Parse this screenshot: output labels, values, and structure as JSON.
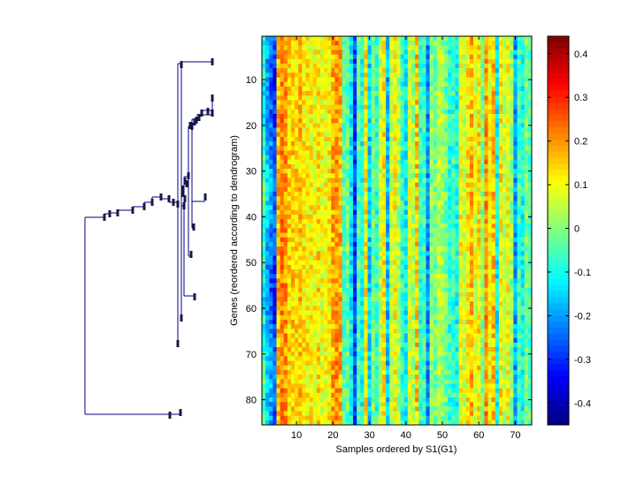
{
  "chart_data": [
    {
      "type": "dendrogram",
      "orientation": "leaves-right",
      "leaf_count": 85,
      "description_visible": "Hierarchical clustering tree of 85 genes; leaves ordered top-to-bottom to match heatmap rows",
      "line_color": "#000080"
    },
    {
      "type": "heatmap",
      "xlabel": "Samples ordered by S1(G1)",
      "ylabel": "Genes (reordered according to dendrogram)",
      "n_rows": 85,
      "n_cols": 74,
      "xlim": [
        0.5,
        74.5
      ],
      "ylim": [
        0.5,
        85.5
      ],
      "x_ticks": [
        10,
        20,
        30,
        40,
        50,
        60,
        70
      ],
      "x_tick_labels": [
        "10",
        "20",
        "30",
        "40",
        "50",
        "60",
        "70"
      ],
      "y_ticks": [
        10,
        20,
        30,
        40,
        50,
        60,
        70,
        80
      ],
      "y_tick_labels": [
        "10",
        "20",
        "30",
        "40",
        "50",
        "60",
        "70",
        "80"
      ],
      "colormap": "jet",
      "column_profile_mean": [
        -0.08,
        -0.18,
        -0.22,
        -0.28,
        0.17,
        0.22,
        0.2,
        0.14,
        0.15,
        0.13,
        0.16,
        0.12,
        0.12,
        0.11,
        0.1,
        0.13,
        0.09,
        0.1,
        0.12,
        0.18,
        0.2,
        0.18,
        -0.05,
        -0.03,
        -0.12,
        -0.28,
        -0.04,
        -0.1,
        0.12,
        -0.15,
        -0.02,
        -0.08,
        0.05,
        0.12,
        -0.18,
        0.06,
        0.1,
        0.03,
        -0.08,
        -0.12,
        0.07,
        0.03,
        0.16,
        -0.08,
        -0.06,
        -0.22,
        0.0,
        -0.02,
        0.05,
        0.02,
        -0.02,
        -0.08,
        -0.07,
        -0.1,
        0.1,
        0.06,
        0.12,
        0.17,
        0.08,
        0.13,
        -0.02,
        0.2,
        0.1,
        0.16,
        -0.12,
        0.12,
        0.05,
        0.1,
        0.02,
        -0.2,
        -0.06,
        -0.1,
        0.0,
        -0.05
      ]
    },
    {
      "type": "colorbar",
      "clim": [
        -0.45,
        0.44
      ],
      "ticks": [
        -0.4,
        -0.3,
        -0.2,
        -0.1,
        0,
        0.1,
        0.2,
        0.3,
        0.4
      ],
      "tick_labels": [
        "-0.4",
        "-0.3",
        "-0.2",
        "-0.1",
        "0",
        "0.1",
        "0.2",
        "0.3",
        "0.4"
      ]
    }
  ]
}
